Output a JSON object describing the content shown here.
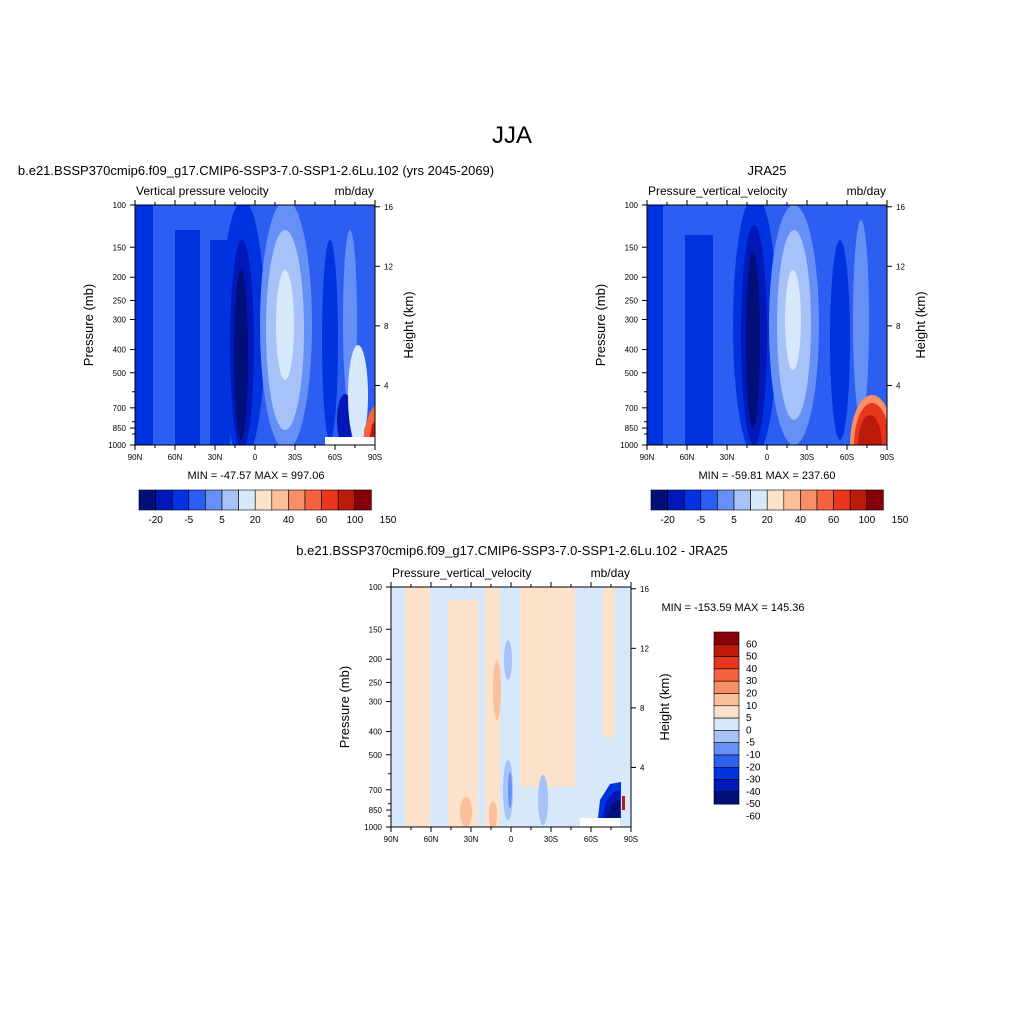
{
  "page_title": "JJA",
  "colors": {
    "ramp13": [
      "#000f7a",
      "#0018b8",
      "#0033e0",
      "#2c5ef2",
      "#6690f5",
      "#a6c2f8",
      "#d7e8fb",
      "#fde2cb",
      "#fbbf9b",
      "#f88f68",
      "#f5633e",
      "#e8361c",
      "#bd1a0c",
      "#850008"
    ],
    "diff_ramp": [
      "#000f7a",
      "#0018b8",
      "#0033e0",
      "#2c5ef2",
      "#6690f5",
      "#a6c2f8",
      "#d7e8fb",
      "#fde2cb",
      "#fbbf9b",
      "#f88f68",
      "#f5633e",
      "#e8361c",
      "#bd1a0c",
      "#850008"
    ]
  },
  "chart_data": [
    {
      "type": "heatmap",
      "id": "model",
      "title": "b.e21.BSSP370cmip6.f09_g17.CMIP6-SSP3-7.0-SSP1-2.6Lu.102 (yrs 2045-2069)",
      "left_label": "Vertical pressure velocity",
      "right_label": "mb/day",
      "ylabel": "Pressure (mb)",
      "y2label": "Height (km)",
      "x_ticks": [
        "90N",
        "60N",
        "30N",
        "0",
        "30S",
        "60S",
        "90S"
      ],
      "y_ticks": [
        100,
        150,
        200,
        250,
        300,
        400,
        500,
        700,
        850,
        1000
      ],
      "y2_ticks": [
        16,
        12,
        8,
        4
      ],
      "stats": "MIN = -47.57  MAX = 997.06",
      "colorbar_labels": [
        "-20",
        "-5",
        "5",
        "20",
        "40",
        "60",
        "100",
        "150"
      ]
    },
    {
      "type": "heatmap",
      "id": "obs",
      "title": "JRA25",
      "left_label": "Pressure_vertical_velocity",
      "right_label": "mb/day",
      "ylabel": "Pressure (mb)",
      "y2label": "Height (km)",
      "x_ticks": [
        "90N",
        "60N",
        "30N",
        "0",
        "30S",
        "60S",
        "90S"
      ],
      "y_ticks": [
        100,
        150,
        200,
        250,
        300,
        400,
        500,
        700,
        850,
        1000
      ],
      "y2_ticks": [
        16,
        12,
        8,
        4
      ],
      "stats": "MIN = -59.81  MAX = 237.60",
      "colorbar_labels": [
        "-20",
        "-5",
        "5",
        "20",
        "40",
        "60",
        "100",
        "150"
      ]
    },
    {
      "type": "heatmap",
      "id": "diff",
      "title": "b.e21.BSSP370cmip6.f09_g17.CMIP6-SSP3-7.0-SSP1-2.6Lu.102 - JRA25",
      "left_label": "Pressure_vertical_velocity",
      "right_label": "mb/day",
      "ylabel": "Pressure (mb)",
      "y2label": "Height (km)",
      "x_ticks": [
        "90N",
        "60N",
        "30N",
        "0",
        "30S",
        "60S",
        "90S"
      ],
      "y_ticks": [
        100,
        150,
        200,
        250,
        300,
        400,
        500,
        700,
        850,
        1000
      ],
      "y2_ticks": [
        16,
        12,
        8,
        4
      ],
      "stats": "MIN = -153.59  MAX = 145.36",
      "colorbar_labels": [
        "60",
        "50",
        "40",
        "30",
        "20",
        "10",
        "5",
        "0",
        "-5",
        "-10",
        "-20",
        "-30",
        "-40",
        "-50",
        "-60"
      ]
    }
  ]
}
